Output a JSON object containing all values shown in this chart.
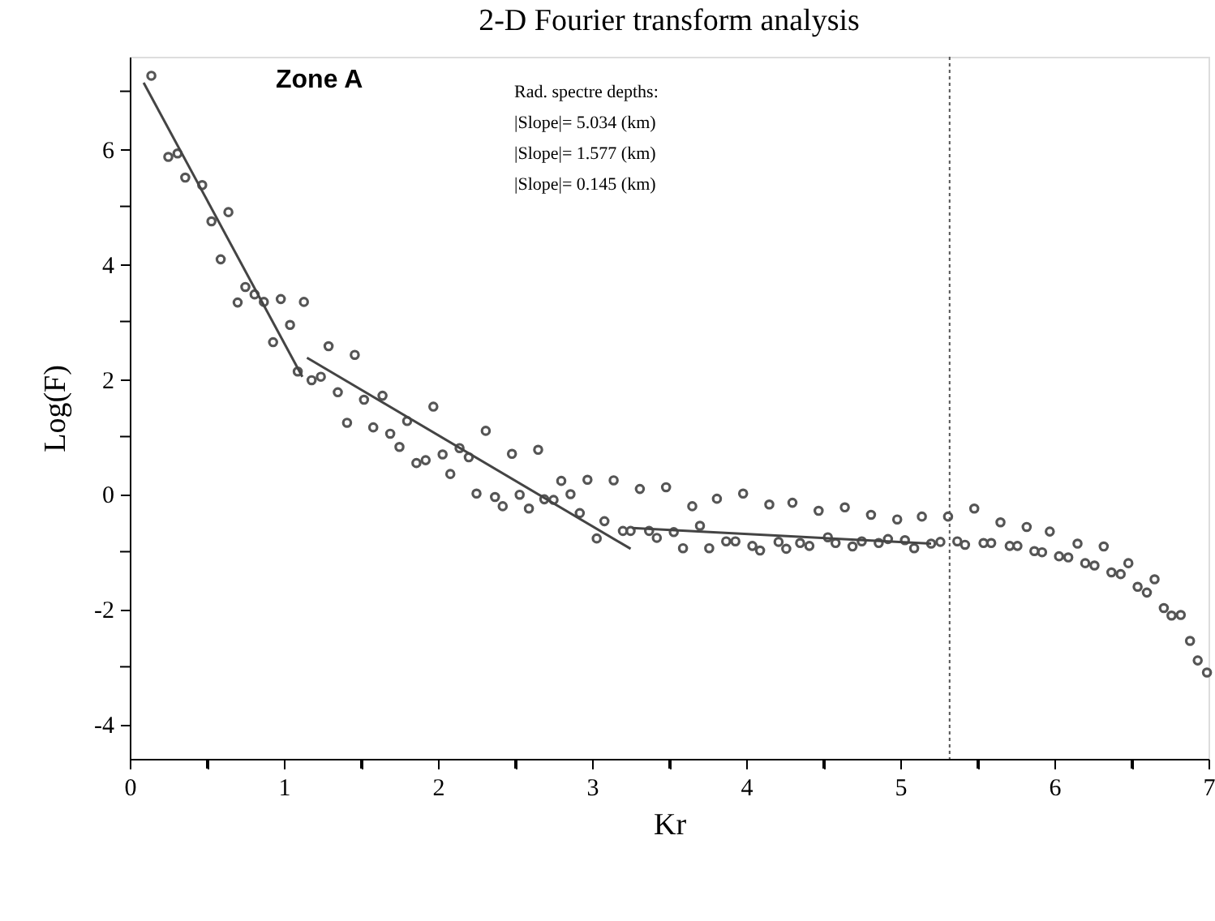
{
  "chart_data": {
    "type": "scatter",
    "title": "2-D Fourier transform analysis",
    "xlabel": "Kr",
    "ylabel": "Log(F)",
    "xlim": [
      0,
      7
    ],
    "ylim": [
      -4.6,
      7.6
    ],
    "xticks": [
      0,
      {
        "value": 0.5,
        "label": null
      },
      1,
      {
        "value": 1.5,
        "label": null
      },
      2,
      {
        "value": 2.5,
        "label": null
      },
      3,
      {
        "value": 3.5,
        "label": null
      },
      4,
      {
        "value": 4.5,
        "label": null
      },
      5,
      {
        "value": 5.5,
        "label": null
      },
      6,
      {
        "value": 6.5,
        "label": null
      },
      7
    ],
    "yticks": [
      -4,
      {
        "value": -3,
        "label": null
      },
      -2,
      {
        "value": -1,
        "label": null
      },
      0,
      {
        "value": 1,
        "label": null
      },
      2,
      {
        "value": 3,
        "label": null
      },
      4,
      {
        "value": 5,
        "label": null
      },
      6,
      {
        "value": 7,
        "label": null
      }
    ],
    "grid": false,
    "marker": "circle",
    "annotations": [
      "Zone A",
      "Rad. spectre depths:",
      "|Slope|=      5.034 (km)",
      "|Slope|=      1.577 (km)",
      "|Slope|=      0.145 (km)"
    ],
    "ref_lines": [
      {
        "axis": "x",
        "value": 5.32,
        "color": "#555555",
        "line_style": "dotted"
      }
    ],
    "series": [
      {
        "color": "#555555",
        "x": [
          0.14,
          0.25,
          0.31,
          0.36,
          0.47,
          0.53,
          0.59,
          0.64,
          0.7,
          0.75,
          0.81,
          0.87,
          0.93,
          0.98,
          1.04,
          1.09,
          1.13,
          1.18,
          1.24,
          1.29,
          1.35,
          1.41,
          1.46,
          1.52,
          1.58,
          1.64,
          1.69,
          1.75,
          1.8,
          1.86,
          1.92,
          1.97,
          2.03,
          2.08,
          2.14,
          2.2,
          2.25,
          2.31,
          2.37,
          2.42,
          2.48,
          2.53,
          2.59,
          2.65,
          2.69,
          2.75,
          2.8,
          2.86,
          2.92,
          2.97,
          3.03,
          3.08,
          3.14,
          3.2,
          3.25,
          3.31,
          3.37,
          3.42,
          3.48,
          3.53,
          3.59,
          3.65,
          3.7,
          3.76,
          3.81,
          3.87,
          3.93,
          3.98,
          4.04,
          4.09,
          4.15,
          4.21,
          4.26,
          4.3,
          4.35,
          4.41,
          4.47,
          4.53,
          4.58,
          4.64,
          4.69,
          4.75,
          4.81,
          4.86,
          4.92,
          4.98,
          5.03,
          5.09,
          5.14,
          5.2,
          5.26,
          5.31,
          5.37,
          5.42,
          5.48,
          5.54,
          5.59,
          5.65,
          5.71,
          5.76,
          5.82,
          5.87,
          5.92,
          5.97,
          6.03,
          6.09,
          6.15,
          6.2,
          6.26,
          6.32,
          6.37,
          6.43,
          6.48,
          6.54,
          6.6,
          6.65,
          6.71,
          6.76,
          6.82,
          6.88,
          6.93,
          6.99
        ],
        "values": [
          7.27,
          5.86,
          5.92,
          5.5,
          5.37,
          4.74,
          4.08,
          4.9,
          3.33,
          3.6,
          3.47,
          3.34,
          2.64,
          3.39,
          2.94,
          2.13,
          3.34,
          1.98,
          2.04,
          2.57,
          1.77,
          1.24,
          2.42,
          1.64,
          1.16,
          1.71,
          1.05,
          0.82,
          1.27,
          0.54,
          0.59,
          1.52,
          0.69,
          0.35,
          0.8,
          0.64,
          0.01,
          1.1,
          -0.05,
          -0.21,
          0.7,
          -0.01,
          -0.25,
          0.77,
          -0.09,
          -0.1,
          0.23,
          0.0,
          -0.33,
          0.25,
          -0.77,
          -0.47,
          0.24,
          -0.64,
          -0.64,
          0.09,
          -0.64,
          -0.76,
          0.12,
          -0.66,
          -0.94,
          -0.21,
          -0.55,
          -0.94,
          -0.08,
          -0.82,
          -0.82,
          0.01,
          -0.9,
          -0.98,
          -0.18,
          -0.83,
          -0.95,
          -0.15,
          -0.85,
          -0.9,
          -0.29,
          -0.75,
          -0.85,
          -0.23,
          -0.91,
          -0.82,
          -0.36,
          -0.85,
          -0.78,
          -0.44,
          -0.8,
          -0.94,
          -0.39,
          -0.86,
          -0.83,
          -0.39,
          -0.82,
          -0.88,
          -0.25,
          -0.85,
          -0.85,
          -0.49,
          -0.9,
          -0.9,
          -0.57,
          -0.99,
          -1.01,
          -0.65,
          -1.08,
          -1.1,
          -0.86,
          -1.2,
          -1.24,
          -0.91,
          -1.36,
          -1.39,
          -1.2,
          -1.61,
          -1.71,
          -1.48,
          -1.98,
          -2.11,
          -2.1,
          -2.55,
          -2.89,
          -3.1
        ]
      },
      {
        "type": "line",
        "color": "#444444",
        "marker": "none",
        "x": [
          0.09,
          1.12
        ],
        "values": [
          7.15,
          2.04
        ]
      },
      {
        "type": "line",
        "color": "#444444",
        "marker": "none",
        "x": [
          1.15,
          3.25
        ],
        "values": [
          2.37,
          -0.95
        ]
      },
      {
        "type": "line",
        "color": "#444444",
        "marker": "none",
        "x": [
          3.26,
          5.2
        ],
        "values": [
          -0.59,
          -0.86
        ]
      }
    ]
  }
}
